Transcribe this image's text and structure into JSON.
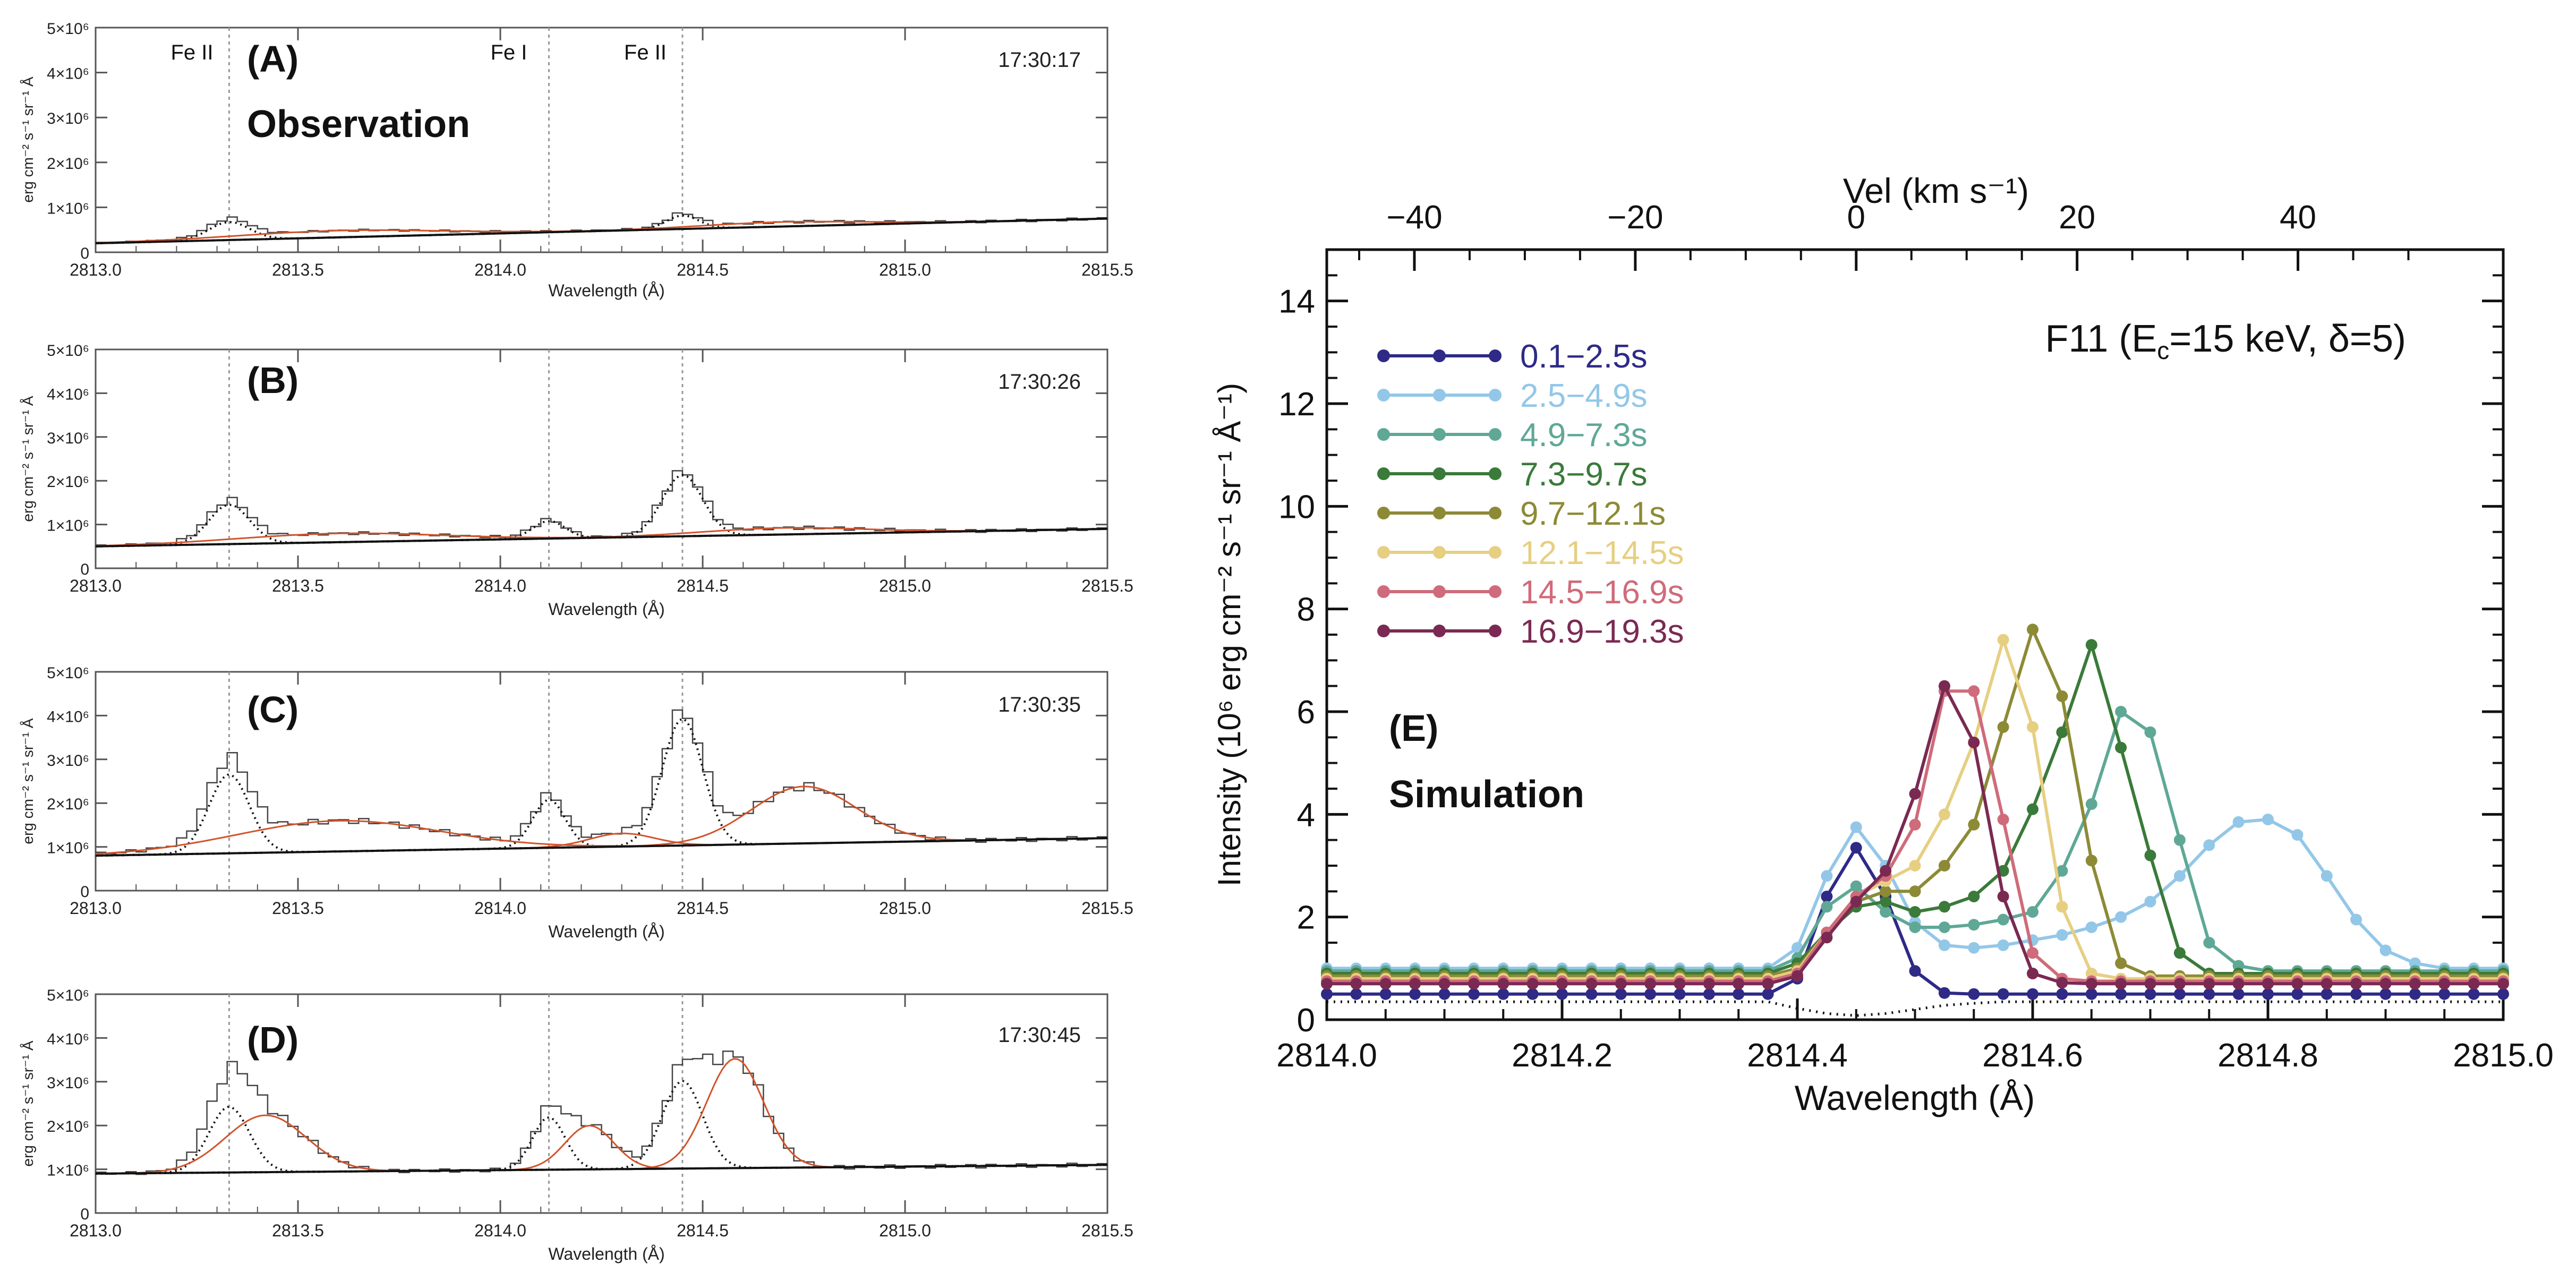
{
  "figure_title": "",
  "chart_data": [
    {
      "id": "A",
      "type": "line",
      "panel_label": "(A)",
      "subtitle": "Observation",
      "timestamp": "17:30:17",
      "xlabel": "Wavelength (Å)",
      "ylabel": "erg cm⁻² s⁻¹ sr⁻¹ Å",
      "xlim": [
        2813.0,
        2815.5
      ],
      "ylim": [
        0,
        5000000
      ],
      "xticks": [
        "2813.0",
        "2813.5",
        "2814.0",
        "2814.5",
        "2815.0",
        "2815.5"
      ],
      "yticks": [
        "0",
        "1×10⁶",
        "2×10⁶",
        "3×10⁶",
        "4×10⁶",
        "5×10⁶"
      ],
      "line_ids": [
        {
          "label": "Fe II",
          "x": 2813.33
        },
        {
          "label": "Fe I",
          "x": 2814.12
        },
        {
          "label": "Fe II",
          "x": 2814.45
        }
      ],
      "continuum": [
        200000,
        750000
      ],
      "peaks": [
        {
          "center": 2813.33,
          "amp": 400000,
          "width": 0.05
        },
        {
          "center": 2814.45,
          "amp": 300000,
          "width": 0.04
        }
      ],
      "bumps": [
        {
          "center": 2813.6,
          "amp": 150000,
          "width": 0.25
        },
        {
          "center": 2814.7,
          "amp": 100000,
          "width": 0.2
        }
      ]
    },
    {
      "id": "B",
      "type": "line",
      "panel_label": "(B)",
      "subtitle": "",
      "timestamp": "17:30:26",
      "xlabel": "Wavelength (Å)",
      "ylabel": "erg cm⁻² s⁻¹ sr⁻¹ Å",
      "xlim": [
        2813.0,
        2815.5
      ],
      "ylim": [
        0,
        5000000
      ],
      "xticks": [
        "2813.0",
        "2813.5",
        "2814.0",
        "2814.5",
        "2815.0",
        "2815.5"
      ],
      "yticks": [
        "0",
        "1×10⁶",
        "2×10⁶",
        "3×10⁶",
        "4×10⁶",
        "5×10⁶"
      ],
      "line_ids": [],
      "continuum": [
        500000,
        900000
      ],
      "peaks": [
        {
          "center": 2813.33,
          "amp": 900000,
          "width": 0.05
        },
        {
          "center": 2814.12,
          "amp": 400000,
          "width": 0.04
        },
        {
          "center": 2814.45,
          "amp": 1400000,
          "width": 0.05
        }
      ],
      "bumps": [
        {
          "center": 2813.6,
          "amp": 200000,
          "width": 0.25
        },
        {
          "center": 2814.7,
          "amp": 150000,
          "width": 0.2
        }
      ]
    },
    {
      "id": "C",
      "type": "line",
      "panel_label": "(C)",
      "subtitle": "",
      "timestamp": "17:30:35",
      "xlabel": "Wavelength (Å)",
      "ylabel": "erg cm⁻² s⁻¹ sr⁻¹ Å",
      "xlim": [
        2813.0,
        2815.5
      ],
      "ylim": [
        0,
        5000000
      ],
      "xticks": [
        "2813.0",
        "2813.5",
        "2814.0",
        "2814.5",
        "2815.0",
        "2815.5"
      ],
      "yticks": [
        "0",
        "1×10⁶",
        "2×10⁶",
        "3×10⁶",
        "4×10⁶",
        "5×10⁶"
      ],
      "line_ids": [],
      "continuum": [
        800000,
        1200000
      ],
      "peaks": [
        {
          "center": 2813.33,
          "amp": 1800000,
          "width": 0.05
        },
        {
          "center": 2814.12,
          "amp": 1100000,
          "width": 0.04
        },
        {
          "center": 2814.45,
          "amp": 2900000,
          "width": 0.05
        }
      ],
      "bumps": [
        {
          "center": 2813.6,
          "amp": 700000,
          "width": 0.25
        },
        {
          "center": 2814.75,
          "amp": 1300000,
          "width": 0.13
        },
        {
          "center": 2814.3,
          "amp": 300000,
          "width": 0.08
        }
      ]
    },
    {
      "id": "D",
      "type": "line",
      "panel_label": "(D)",
      "subtitle": "",
      "timestamp": "17:30:45",
      "xlabel": "Wavelength (Å)",
      "ylabel": "erg cm⁻² s⁻¹ sr⁻¹ Å",
      "xlim": [
        2813.0,
        2815.5
      ],
      "ylim": [
        0,
        5000000
      ],
      "xticks": [
        "2813.0",
        "2813.5",
        "2814.0",
        "2814.5",
        "2815.0",
        "2815.5"
      ],
      "yticks": [
        "0",
        "1×10⁶",
        "2×10⁶",
        "3×10⁶",
        "4×10⁶",
        "5×10⁶"
      ],
      "line_ids": [],
      "continuum": [
        900000,
        1100000
      ],
      "peaks": [
        {
          "center": 2813.33,
          "amp": 1500000,
          "width": 0.05
        },
        {
          "center": 2814.12,
          "amp": 1200000,
          "width": 0.04
        },
        {
          "center": 2814.45,
          "amp": 2000000,
          "width": 0.05
        }
      ],
      "bumps": [
        {
          "center": 2813.42,
          "amp": 1300000,
          "width": 0.1
        },
        {
          "center": 2814.22,
          "amp": 1000000,
          "width": 0.06
        },
        {
          "center": 2814.58,
          "amp": 2500000,
          "width": 0.07
        }
      ]
    },
    {
      "id": "E",
      "type": "line",
      "panel_label": "(E)",
      "subtitle": "Simulation",
      "title": "F11 (Ec=15 keV, δ=5)",
      "title_parts": {
        "pre": "F11 (E",
        "sub": "c",
        "post": "=15 keV, δ=5)"
      },
      "xlabel": "Wavelength (Å)",
      "ylabel": "Intensity (10⁶ erg cm⁻² s⁻¹ sr⁻¹ Å⁻¹)",
      "top_xlabel": "Vel (km s⁻¹)",
      "xlim": [
        2814.0,
        2815.0
      ],
      "ylim": [
        0,
        15
      ],
      "xticks": [
        "2814.0",
        "2814.2",
        "2814.4",
        "2814.6",
        "2814.8",
        "2815.0"
      ],
      "yticks": [
        "0",
        "2",
        "4",
        "6",
        "8",
        "10",
        "12",
        "14"
      ],
      "top_ticks": [
        "−40",
        "−20",
        "0",
        "20",
        "40"
      ],
      "top_tick_values": [
        -40,
        -20,
        0,
        20,
        40
      ],
      "rest_wavelength": 2814.45,
      "legend_position": "top-left",
      "x": [
        2814.0,
        2814.025,
        2814.05,
        2814.075,
        2814.1,
        2814.125,
        2814.15,
        2814.175,
        2814.2,
        2814.225,
        2814.25,
        2814.275,
        2814.3,
        2814.325,
        2814.35,
        2814.375,
        2814.4,
        2814.425,
        2814.45,
        2814.475,
        2814.5,
        2814.525,
        2814.55,
        2814.575,
        2814.6,
        2814.625,
        2814.65,
        2814.675,
        2814.7,
        2814.725,
        2814.75,
        2814.775,
        2814.8,
        2814.825,
        2814.85,
        2814.875,
        2814.9,
        2814.925,
        2814.95,
        2814.975,
        2815.0
      ],
      "series": [
        {
          "name": "0.1−2.5s",
          "color": "#2e2a86",
          "values": [
            0.5,
            0.5,
            0.5,
            0.5,
            0.5,
            0.5,
            0.5,
            0.5,
            0.5,
            0.5,
            0.5,
            0.5,
            0.5,
            0.5,
            0.5,
            0.5,
            0.8,
            2.4,
            3.35,
            2.4,
            0.95,
            0.52,
            0.5,
            0.5,
            0.5,
            0.5,
            0.5,
            0.5,
            0.5,
            0.5,
            0.5,
            0.5,
            0.5,
            0.5,
            0.5,
            0.5,
            0.5,
            0.5,
            0.5,
            0.5,
            0.5
          ]
        },
        {
          "name": "2.5−4.9s",
          "color": "#93c7e8",
          "values": [
            1.0,
            1.0,
            1.0,
            1.0,
            1.0,
            1.0,
            1.0,
            1.0,
            1.0,
            1.0,
            1.0,
            1.0,
            1.0,
            1.0,
            1.0,
            1.0,
            1.4,
            2.8,
            3.75,
            3.0,
            1.9,
            1.45,
            1.4,
            1.45,
            1.55,
            1.65,
            1.8,
            2.0,
            2.3,
            2.8,
            3.4,
            3.85,
            3.9,
            3.6,
            2.8,
            1.95,
            1.35,
            1.1,
            1.0,
            1.0,
            1.0
          ]
        },
        {
          "name": "4.9−7.3s",
          "color": "#5fa896",
          "values": [
            0.95,
            0.95,
            0.95,
            0.95,
            0.95,
            0.95,
            0.95,
            0.95,
            0.95,
            0.95,
            0.95,
            0.95,
            0.95,
            0.95,
            0.95,
            0.95,
            1.2,
            2.2,
            2.6,
            2.1,
            1.8,
            1.8,
            1.85,
            1.95,
            2.1,
            2.9,
            4.2,
            6.0,
            5.6,
            3.5,
            1.5,
            1.05,
            0.95,
            0.95,
            0.95,
            0.95,
            0.95,
            0.95,
            0.95,
            0.95,
            0.95
          ]
        },
        {
          "name": "7.3−9.7s",
          "color": "#3a7a3a",
          "values": [
            0.9,
            0.9,
            0.9,
            0.9,
            0.9,
            0.9,
            0.9,
            0.9,
            0.9,
            0.9,
            0.9,
            0.9,
            0.9,
            0.9,
            0.9,
            0.9,
            1.1,
            1.7,
            2.2,
            2.3,
            2.1,
            2.2,
            2.4,
            2.9,
            4.1,
            5.6,
            7.3,
            5.3,
            3.2,
            1.3,
            0.9,
            0.9,
            0.9,
            0.9,
            0.9,
            0.9,
            0.9,
            0.9,
            0.9,
            0.9,
            0.9
          ]
        },
        {
          "name": "9.7−12.1s",
          "color": "#8d8a36",
          "values": [
            0.85,
            0.85,
            0.85,
            0.85,
            0.85,
            0.85,
            0.85,
            0.85,
            0.85,
            0.85,
            0.85,
            0.85,
            0.85,
            0.85,
            0.85,
            0.85,
            1.0,
            1.7,
            2.3,
            2.5,
            2.5,
            3.0,
            3.8,
            5.7,
            7.6,
            6.3,
            3.1,
            1.1,
            0.85,
            0.85,
            0.85,
            0.85,
            0.85,
            0.85,
            0.85,
            0.85,
            0.85,
            0.85,
            0.85,
            0.85,
            0.85
          ]
        },
        {
          "name": "12.1−14.5s",
          "color": "#e7cf82",
          "values": [
            0.8,
            0.8,
            0.8,
            0.8,
            0.8,
            0.8,
            0.8,
            0.8,
            0.8,
            0.8,
            0.8,
            0.8,
            0.8,
            0.8,
            0.8,
            0.8,
            0.95,
            1.7,
            2.4,
            2.7,
            3.0,
            4.0,
            5.4,
            7.4,
            5.7,
            2.2,
            0.9,
            0.8,
            0.8,
            0.8,
            0.8,
            0.8,
            0.8,
            0.8,
            0.8,
            0.8,
            0.8,
            0.8,
            0.8,
            0.8,
            0.8
          ]
        },
        {
          "name": "14.5−16.9s",
          "color": "#cf6b7a",
          "values": [
            0.75,
            0.75,
            0.75,
            0.75,
            0.75,
            0.75,
            0.75,
            0.75,
            0.75,
            0.75,
            0.75,
            0.75,
            0.75,
            0.75,
            0.75,
            0.75,
            0.9,
            1.7,
            2.4,
            2.8,
            3.8,
            6.4,
            6.4,
            3.9,
            1.3,
            0.8,
            0.75,
            0.75,
            0.75,
            0.75,
            0.75,
            0.75,
            0.75,
            0.75,
            0.75,
            0.75,
            0.75,
            0.75,
            0.75,
            0.75,
            0.75
          ]
        },
        {
          "name": "16.9−19.3s",
          "color": "#7a2a52",
          "values": [
            0.7,
            0.7,
            0.7,
            0.7,
            0.7,
            0.7,
            0.7,
            0.7,
            0.7,
            0.7,
            0.7,
            0.7,
            0.7,
            0.7,
            0.7,
            0.7,
            0.85,
            1.6,
            2.3,
            2.9,
            4.4,
            6.5,
            5.4,
            2.4,
            0.9,
            0.72,
            0.7,
            0.7,
            0.7,
            0.7,
            0.7,
            0.7,
            0.7,
            0.7,
            0.7,
            0.7,
            0.7,
            0.7,
            0.7,
            0.7,
            0.7
          ]
        }
      ],
      "background": {
        "name": "dotted",
        "values": [
          0.35,
          0.35,
          0.35,
          0.35,
          0.35,
          0.35,
          0.35,
          0.35,
          0.35,
          0.35,
          0.35,
          0.35,
          0.35,
          0.35,
          0.35,
          0.35,
          0.22,
          0.12,
          0.08,
          0.12,
          0.2,
          0.28,
          0.32,
          0.35,
          0.35,
          0.35,
          0.35,
          0.35,
          0.35,
          0.35,
          0.35,
          0.35,
          0.35,
          0.35,
          0.35,
          0.35,
          0.35,
          0.35,
          0.35,
          0.35,
          0.35
        ]
      }
    }
  ]
}
